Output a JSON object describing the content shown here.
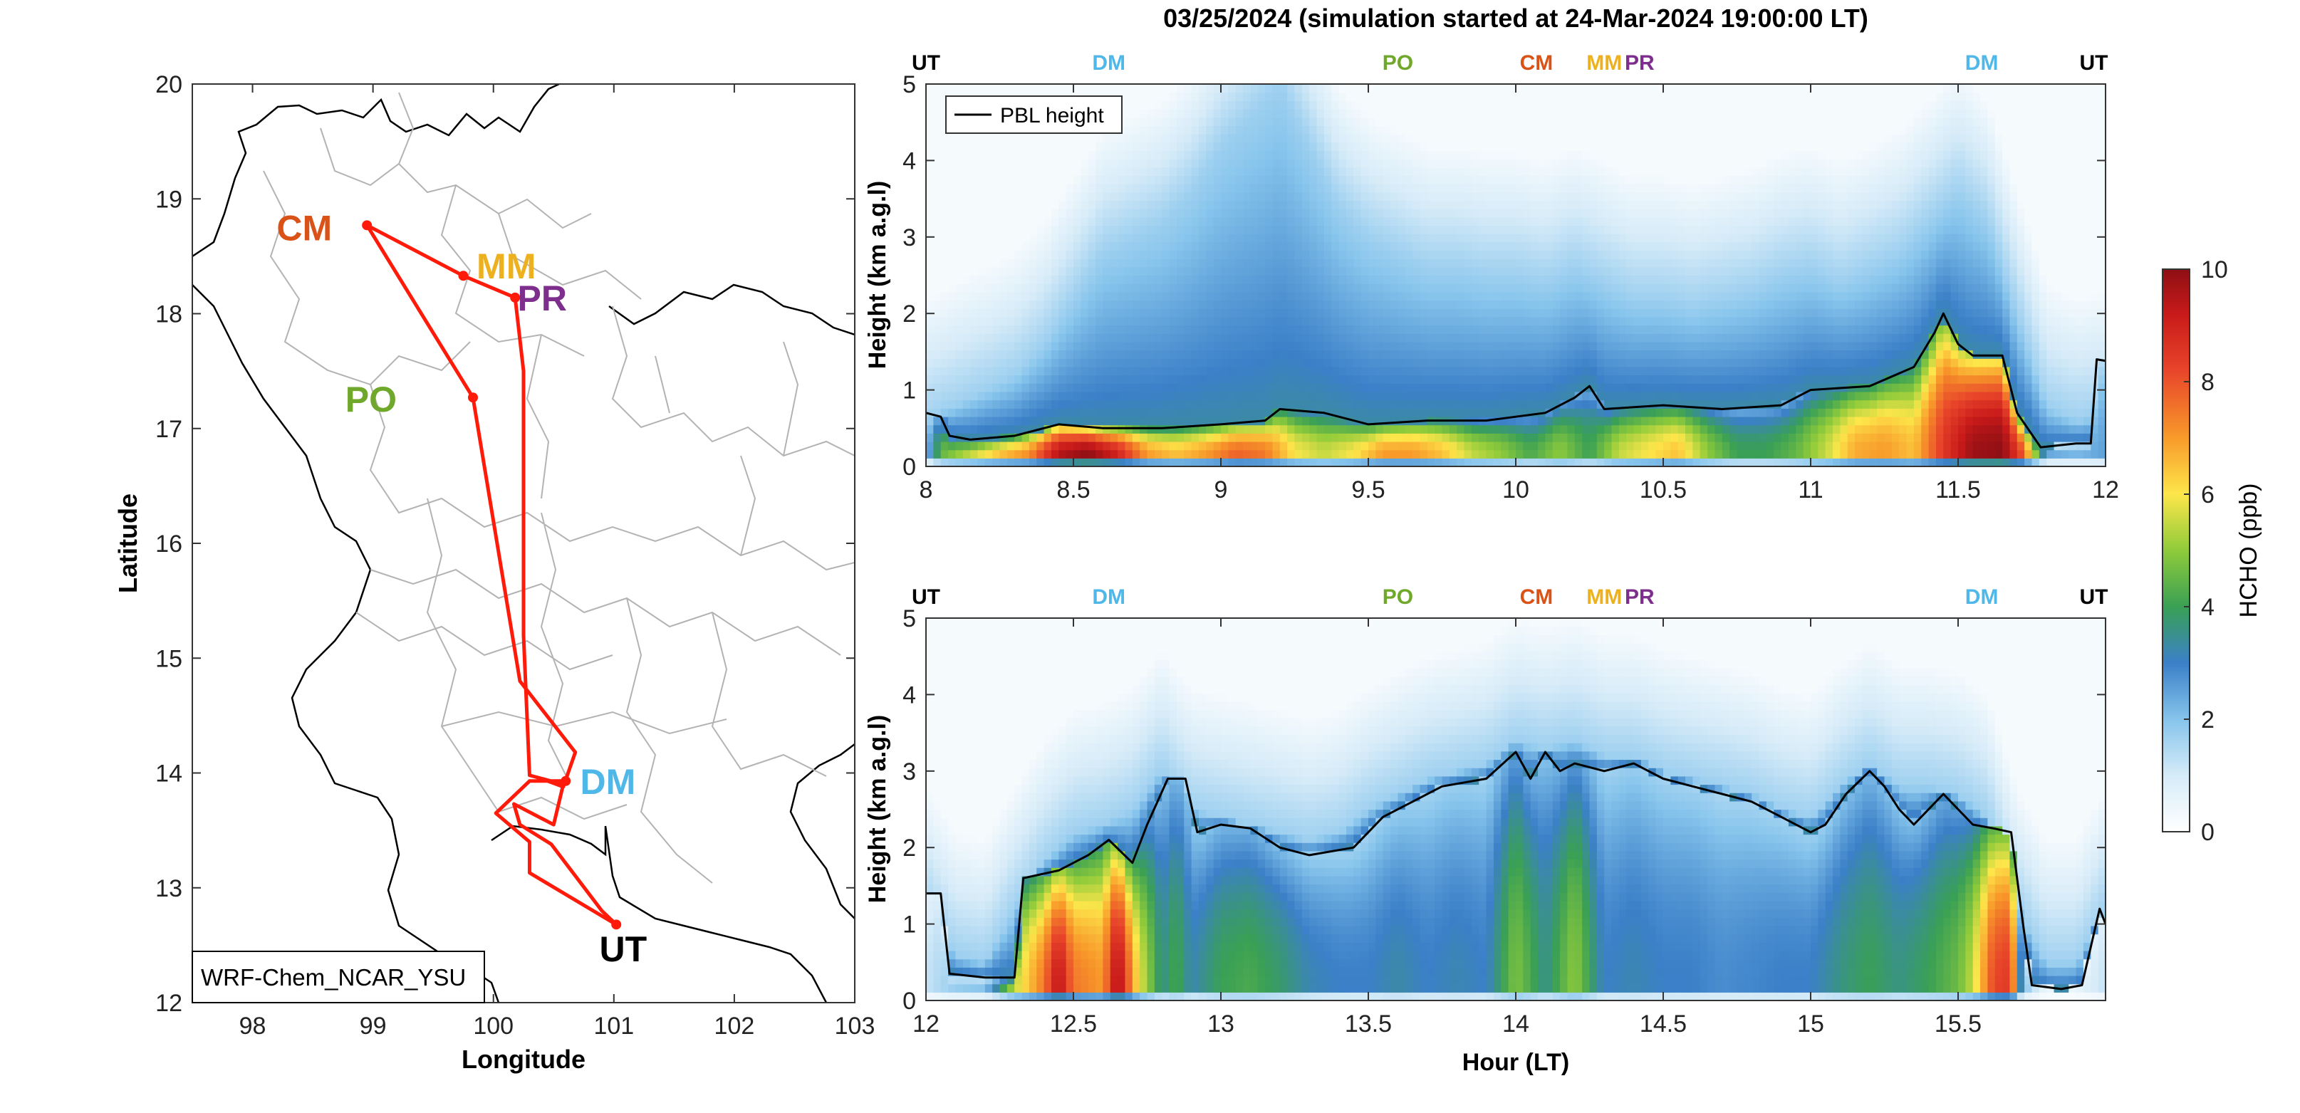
{
  "title": "03/25/2024 (simulation started at 24-Mar-2024 19:00:00 LT)",
  "colors": {
    "route": "#ff1a0a",
    "UT": "#000000",
    "DM": "#4fb8e8",
    "PO": "#6fa82a",
    "CM": "#d95319",
    "MM": "#edb120",
    "PR": "#7e2f8e",
    "pbl": "#000000",
    "border": "#b0b0b0"
  },
  "chart_data": [
    {
      "type": "map",
      "xlabel": "Longitude",
      "ylabel": "Latitude",
      "xlim": [
        97.5,
        103
      ],
      "ylim": [
        12,
        20
      ],
      "xticks": [
        "98",
        "99",
        "100",
        "101",
        "102",
        "103"
      ],
      "yticks": [
        "12",
        "13",
        "14",
        "15",
        "16",
        "17",
        "18",
        "19",
        "20"
      ],
      "model_label": "WRF-Chem_NCAR_YSU",
      "stations": [
        {
          "code": "CM",
          "lon": 98.95,
          "lat": 18.77,
          "label_lon": 98.2,
          "label_lat": 18.75
        },
        {
          "code": "MM",
          "lon": 99.75,
          "lat": 18.33,
          "label_lon": 99.86,
          "label_lat": 18.42
        },
        {
          "code": "PR",
          "lon": 100.18,
          "lat": 18.14,
          "label_lon": 100.2,
          "label_lat": 18.14
        },
        {
          "code": "PO",
          "lon": 99.83,
          "lat": 17.27,
          "label_lon": 98.77,
          "label_lat": 17.26
        },
        {
          "code": "DM",
          "lon": 100.6,
          "lat": 13.93,
          "label_lon": 100.72,
          "label_lat": 13.93
        },
        {
          "code": "UT",
          "lon": 101.02,
          "lat": 12.68,
          "label_lon": 100.88,
          "label_lat": 12.47
        }
      ],
      "route": [
        [
          101.02,
          12.68
        ],
        [
          100.3,
          13.13
        ],
        [
          100.3,
          13.4
        ],
        [
          100.02,
          13.65
        ],
        [
          100.3,
          13.93
        ],
        [
          100.6,
          13.93
        ],
        [
          100.45,
          13.93
        ],
        [
          100.58,
          13.88
        ],
        [
          100.68,
          14.18
        ],
        [
          100.22,
          14.8
        ],
        [
          99.83,
          17.27
        ],
        [
          98.95,
          18.77
        ],
        [
          99.75,
          18.33
        ],
        [
          100.18,
          18.14
        ],
        [
          100.25,
          17.5
        ],
        [
          100.25,
          15.2
        ],
        [
          100.3,
          13.98
        ],
        [
          100.58,
          13.9
        ],
        [
          100.5,
          13.55
        ],
        [
          100.17,
          13.73
        ],
        [
          100.22,
          13.55
        ],
        [
          100.48,
          13.38
        ],
        [
          100.9,
          12.8
        ],
        [
          101.02,
          12.68
        ]
      ]
    },
    {
      "type": "heatmap",
      "ylabel": "Height (km a.g.l)",
      "xlim": [
        8,
        12
      ],
      "ylim": [
        0,
        5
      ],
      "xticks": [
        "8",
        "8.5",
        "9",
        "9.5",
        "10",
        "10.5",
        "11",
        "11.5",
        "12"
      ],
      "yticks": [
        "0",
        "1",
        "2",
        "3",
        "4",
        "5"
      ],
      "legend": "PBL height",
      "top_labels": [
        {
          "code": "UT",
          "x": 8.0
        },
        {
          "code": "DM",
          "x": 8.62
        },
        {
          "code": "PO",
          "x": 9.6
        },
        {
          "code": "CM",
          "x": 10.07
        },
        {
          "code": "MM",
          "x": 10.3
        },
        {
          "code": "PR",
          "x": 10.42
        },
        {
          "code": "DM",
          "x": 11.58
        },
        {
          "code": "UT",
          "x": 11.96
        }
      ],
      "pbl": [
        [
          8.0,
          0.7
        ],
        [
          8.05,
          0.65
        ],
        [
          8.08,
          0.4
        ],
        [
          8.15,
          0.35
        ],
        [
          8.3,
          0.4
        ],
        [
          8.45,
          0.55
        ],
        [
          8.6,
          0.5
        ],
        [
          8.8,
          0.5
        ],
        [
          9.0,
          0.55
        ],
        [
          9.15,
          0.6
        ],
        [
          9.2,
          0.75
        ],
        [
          9.35,
          0.7
        ],
        [
          9.5,
          0.55
        ],
        [
          9.7,
          0.6
        ],
        [
          9.9,
          0.6
        ],
        [
          10.0,
          0.65
        ],
        [
          10.1,
          0.7
        ],
        [
          10.2,
          0.9
        ],
        [
          10.25,
          1.05
        ],
        [
          10.3,
          0.75
        ],
        [
          10.5,
          0.8
        ],
        [
          10.7,
          0.75
        ],
        [
          10.9,
          0.8
        ],
        [
          11.0,
          1.0
        ],
        [
          11.2,
          1.05
        ],
        [
          11.35,
          1.3
        ],
        [
          11.42,
          1.75
        ],
        [
          11.45,
          2.0
        ],
        [
          11.5,
          1.6
        ],
        [
          11.55,
          1.45
        ],
        [
          11.65,
          1.45
        ],
        [
          11.7,
          0.7
        ],
        [
          11.78,
          0.25
        ],
        [
          11.9,
          0.3
        ],
        [
          11.95,
          0.3
        ],
        [
          11.97,
          1.4
        ],
        [
          12.0,
          1.38
        ]
      ],
      "hcho_columns": [
        [
          8.0,
          0.6
        ],
        [
          8.1,
          0.8
        ],
        [
          8.2,
          1.0
        ],
        [
          8.3,
          1.2
        ],
        [
          8.4,
          1.6
        ],
        [
          8.5,
          2.2
        ],
        [
          8.6,
          2.8
        ],
        [
          8.7,
          3.0
        ],
        [
          8.8,
          3.2
        ],
        [
          8.9,
          3.6
        ],
        [
          9.0,
          4.2
        ],
        [
          9.1,
          4.6
        ],
        [
          9.2,
          5.0
        ],
        [
          9.3,
          4.2
        ],
        [
          9.4,
          3.4
        ],
        [
          9.5,
          3.0
        ],
        [
          9.6,
          2.8
        ],
        [
          9.7,
          2.6
        ],
        [
          9.8,
          2.6
        ],
        [
          9.9,
          2.5
        ],
        [
          10.0,
          2.5
        ],
        [
          10.1,
          2.4
        ],
        [
          10.2,
          2.6
        ],
        [
          10.3,
          2.4
        ],
        [
          10.4,
          2.2
        ],
        [
          10.5,
          2.2
        ],
        [
          10.6,
          2.1
        ],
        [
          10.7,
          2.2
        ],
        [
          10.8,
          2.3
        ],
        [
          10.9,
          2.5
        ],
        [
          11.0,
          2.6
        ],
        [
          11.1,
          2.4
        ],
        [
          11.2,
          2.6
        ],
        [
          11.3,
          2.8
        ],
        [
          11.4,
          3.2
        ],
        [
          11.5,
          3.6
        ],
        [
          11.6,
          3.2
        ],
        [
          11.7,
          2.0
        ],
        [
          11.8,
          0.8
        ],
        [
          11.9,
          0.6
        ],
        [
          12.0,
          0.7
        ]
      ],
      "hcho_near_surface": [
        [
          8.0,
          2.0
        ],
        [
          8.05,
          4.5
        ],
        [
          8.15,
          5.5
        ],
        [
          8.25,
          6.5
        ],
        [
          8.35,
          7.2
        ],
        [
          8.45,
          9.5
        ],
        [
          8.55,
          10.0
        ],
        [
          8.65,
          9.0
        ],
        [
          8.75,
          7.0
        ],
        [
          8.85,
          6.5
        ],
        [
          8.95,
          7.0
        ],
        [
          9.05,
          7.8
        ],
        [
          9.15,
          7.5
        ],
        [
          9.25,
          6.0
        ],
        [
          9.35,
          5.5
        ],
        [
          9.45,
          6.0
        ],
        [
          9.55,
          7.0
        ],
        [
          9.65,
          7.0
        ],
        [
          9.75,
          6.5
        ],
        [
          9.85,
          5.5
        ],
        [
          9.95,
          5.0
        ],
        [
          10.05,
          4.2
        ],
        [
          10.15,
          5.0
        ],
        [
          10.25,
          4.0
        ],
        [
          10.35,
          5.5
        ],
        [
          10.45,
          6.0
        ],
        [
          10.55,
          6.5
        ],
        [
          10.65,
          5.0
        ],
        [
          10.75,
          4.0
        ],
        [
          10.85,
          4.0
        ],
        [
          10.95,
          4.5
        ],
        [
          11.05,
          5.5
        ],
        [
          11.15,
          6.8
        ],
        [
          11.25,
          7.0
        ],
        [
          11.35,
          6.5
        ],
        [
          11.45,
          8.5
        ],
        [
          11.55,
          9.8
        ],
        [
          11.65,
          10.0
        ],
        [
          11.72,
          8.0
        ],
        [
          11.8,
          2.5
        ],
        [
          11.9,
          2.2
        ],
        [
          12.0,
          2.5
        ]
      ]
    },
    {
      "type": "heatmap",
      "xlabel": "Hour (LT)",
      "ylabel": "Height (km a.g.l)",
      "xlim": [
        12,
        16
      ],
      "ylim": [
        0,
        5
      ],
      "xticks": [
        "12",
        "12.5",
        "13",
        "13.5",
        "14",
        "14.5",
        "15",
        "15.5"
      ],
      "yticks": [
        "0",
        "1",
        "2",
        "3",
        "4",
        "5"
      ],
      "top_labels": [
        {
          "code": "UT",
          "x": 12.0
        },
        {
          "code": "DM",
          "x": 12.62
        },
        {
          "code": "PO",
          "x": 13.6
        },
        {
          "code": "CM",
          "x": 14.07
        },
        {
          "code": "MM",
          "x": 14.3
        },
        {
          "code": "PR",
          "x": 14.42
        },
        {
          "code": "DM",
          "x": 15.58
        },
        {
          "code": "UT",
          "x": 15.96
        }
      ],
      "pbl": [
        [
          12.0,
          1.4
        ],
        [
          12.05,
          1.4
        ],
        [
          12.08,
          0.35
        ],
        [
          12.2,
          0.3
        ],
        [
          12.3,
          0.3
        ],
        [
          12.33,
          1.6
        ],
        [
          12.45,
          1.7
        ],
        [
          12.55,
          1.9
        ],
        [
          12.62,
          2.1
        ],
        [
          12.7,
          1.8
        ],
        [
          12.75,
          2.3
        ],
        [
          12.82,
          2.9
        ],
        [
          12.88,
          2.9
        ],
        [
          12.92,
          2.2
        ],
        [
          13.0,
          2.3
        ],
        [
          13.1,
          2.25
        ],
        [
          13.2,
          2.0
        ],
        [
          13.3,
          1.9
        ],
        [
          13.45,
          2.0
        ],
        [
          13.55,
          2.4
        ],
        [
          13.65,
          2.6
        ],
        [
          13.75,
          2.8
        ],
        [
          13.9,
          2.9
        ],
        [
          14.0,
          3.25
        ],
        [
          14.05,
          2.9
        ],
        [
          14.1,
          3.25
        ],
        [
          14.15,
          3.0
        ],
        [
          14.2,
          3.1
        ],
        [
          14.3,
          3.0
        ],
        [
          14.4,
          3.1
        ],
        [
          14.5,
          2.9
        ],
        [
          14.6,
          2.8
        ],
        [
          14.7,
          2.7
        ],
        [
          14.8,
          2.6
        ],
        [
          14.9,
          2.4
        ],
        [
          15.0,
          2.2
        ],
        [
          15.05,
          2.3
        ],
        [
          15.12,
          2.7
        ],
        [
          15.2,
          3.0
        ],
        [
          15.25,
          2.8
        ],
        [
          15.3,
          2.5
        ],
        [
          15.35,
          2.3
        ],
        [
          15.45,
          2.7
        ],
        [
          15.5,
          2.5
        ],
        [
          15.55,
          2.3
        ],
        [
          15.62,
          2.25
        ],
        [
          15.68,
          2.2
        ],
        [
          15.72,
          1.0
        ],
        [
          15.75,
          0.2
        ],
        [
          15.85,
          0.15
        ],
        [
          15.92,
          0.2
        ],
        [
          15.98,
          1.2
        ],
        [
          16.0,
          1.0
        ]
      ],
      "hcho_columns": [
        [
          12.0,
          1.2
        ],
        [
          12.1,
          0.6
        ],
        [
          12.2,
          0.5
        ],
        [
          12.3,
          1.2
        ],
        [
          12.4,
          1.8
        ],
        [
          12.5,
          2.2
        ],
        [
          12.6,
          2.3
        ],
        [
          12.7,
          2.5
        ],
        [
          12.8,
          3.0
        ],
        [
          12.9,
          2.5
        ],
        [
          13.0,
          2.4
        ],
        [
          13.1,
          2.3
        ],
        [
          13.2,
          2.2
        ],
        [
          13.3,
          2.1
        ],
        [
          13.4,
          2.2
        ],
        [
          13.5,
          2.5
        ],
        [
          13.6,
          2.7
        ],
        [
          13.7,
          2.9
        ],
        [
          13.8,
          3.0
        ],
        [
          13.9,
          3.1
        ],
        [
          14.0,
          3.4
        ],
        [
          14.1,
          3.3
        ],
        [
          14.2,
          3.4
        ],
        [
          14.3,
          3.2
        ],
        [
          14.4,
          3.2
        ],
        [
          14.5,
          3.0
        ],
        [
          14.6,
          2.9
        ],
        [
          14.7,
          2.8
        ],
        [
          14.8,
          2.7
        ],
        [
          14.9,
          2.5
        ],
        [
          15.0,
          2.4
        ],
        [
          15.1,
          2.8
        ],
        [
          15.2,
          3.1
        ],
        [
          15.3,
          2.8
        ],
        [
          15.4,
          2.8
        ],
        [
          15.5,
          2.7
        ],
        [
          15.6,
          2.4
        ],
        [
          15.7,
          1.2
        ],
        [
          15.8,
          0.5
        ],
        [
          15.9,
          0.5
        ],
        [
          16.0,
          1.2
        ]
      ],
      "hcho_near_surface": [
        [
          12.0,
          1.2
        ],
        [
          12.1,
          1.8
        ],
        [
          12.2,
          2.0
        ],
        [
          12.3,
          5.5
        ],
        [
          12.4,
          7.5
        ],
        [
          12.45,
          9.5
        ],
        [
          12.5,
          7.5
        ],
        [
          12.6,
          7.0
        ],
        [
          12.65,
          9.8
        ],
        [
          12.72,
          6.0
        ],
        [
          12.8,
          3.5
        ],
        [
          12.85,
          4.2
        ],
        [
          12.9,
          3.2
        ],
        [
          13.0,
          4.0
        ],
        [
          13.1,
          4.2
        ],
        [
          13.2,
          3.8
        ],
        [
          13.3,
          3.2
        ],
        [
          13.4,
          3.0
        ],
        [
          13.5,
          3.0
        ],
        [
          13.6,
          3.3
        ],
        [
          13.7,
          3.0
        ],
        [
          13.8,
          3.2
        ],
        [
          13.9,
          3.0
        ],
        [
          14.0,
          4.8
        ],
        [
          14.05,
          4.2
        ],
        [
          14.1,
          3.5
        ],
        [
          14.2,
          5.0
        ],
        [
          14.25,
          4.0
        ],
        [
          14.3,
          3.0
        ],
        [
          14.4,
          3.2
        ],
        [
          14.5,
          3.0
        ],
        [
          14.6,
          3.0
        ],
        [
          14.7,
          2.8
        ],
        [
          14.8,
          2.9
        ],
        [
          14.9,
          3.0
        ],
        [
          15.0,
          3.0
        ],
        [
          15.1,
          3.6
        ],
        [
          15.2,
          4.0
        ],
        [
          15.3,
          3.6
        ],
        [
          15.4,
          4.0
        ],
        [
          15.5,
          4.6
        ],
        [
          15.55,
          5.5
        ],
        [
          15.62,
          8.2
        ],
        [
          15.68,
          8.5
        ],
        [
          15.72,
          2.0
        ],
        [
          15.8,
          0.6
        ],
        [
          15.9,
          0.6
        ],
        [
          16.0,
          1.2
        ]
      ]
    },
    {
      "type": "colorbar",
      "label": "HCHO (ppb)",
      "range": [
        0,
        10
      ],
      "ticks": [
        "0",
        "2",
        "4",
        "6",
        "8",
        "10"
      ]
    }
  ]
}
